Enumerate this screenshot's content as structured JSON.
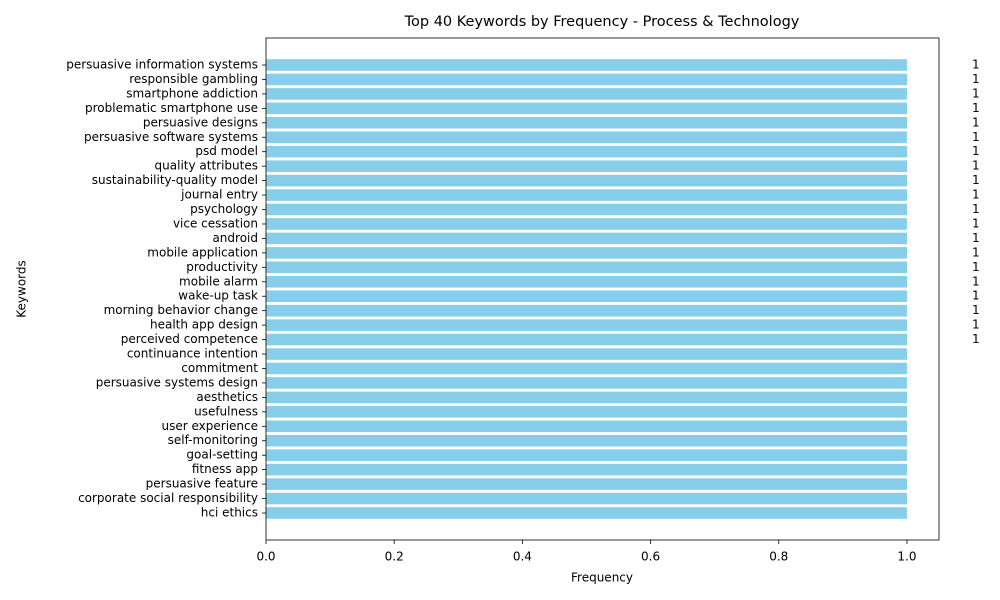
{
  "chart_data": {
    "type": "barh",
    "title": "Top 40 Keywords by Frequency - Process & Technology",
    "x_label": "Frequency",
    "y_label": "Keywords",
    "categories": [
      "persuasive information systems",
      "responsible gambling",
      "smartphone addiction",
      "problematic smartphone use",
      "persuasive designs",
      "persuasive software systems",
      "psd model",
      "quality attributes",
      "sustainability-quality model",
      "journal entry",
      "psychology",
      "vice cessation",
      "android",
      "mobile application",
      "productivity",
      "mobile alarm",
      "wake-up task",
      "morning behavior change",
      "health app design",
      "perceived competence",
      "continuance intention",
      "commitment",
      "persuasive systems design",
      "aesthetics",
      "usefulness",
      "user experience",
      "self-monitoring",
      "goal-setting",
      "fitness app",
      "persuasive feature",
      "corporate social responsibility",
      "hci ethics"
    ],
    "values": [
      1,
      1,
      1,
      1,
      1,
      1,
      1,
      1,
      1,
      1,
      1,
      1,
      1,
      1,
      1,
      1,
      1,
      1,
      1,
      1,
      1,
      1,
      1,
      1,
      1,
      1,
      1,
      1,
      1,
      1,
      1,
      1
    ],
    "value_labels": [
      "1",
      "1",
      "1",
      "1",
      "1",
      "1",
      "1",
      "1",
      "1",
      "1",
      "1",
      "1",
      "1",
      "1",
      "1",
      "1",
      "1",
      "1",
      "1",
      "1",
      null,
      null,
      null,
      null,
      null,
      null,
      null,
      null,
      null,
      null,
      null,
      null
    ],
    "color": "#87ceeb",
    "xlim": [
      0,
      1.05
    ],
    "xticks": [
      {
        "value": 0,
        "label": "0.0"
      },
      0.2,
      0.4,
      0.6,
      0.8,
      {
        "value": 1,
        "label": "1.0"
      }
    ],
    "grid": false
  }
}
